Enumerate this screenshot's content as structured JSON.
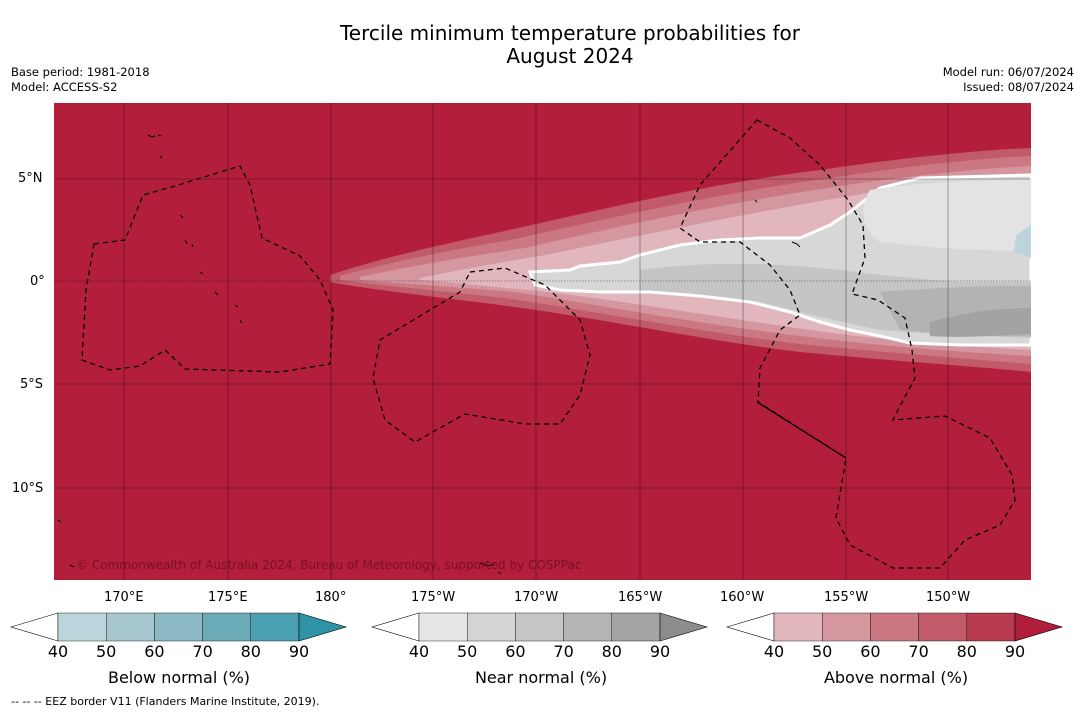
{
  "title": {
    "line1": "Tercile minimum temperature probabilities for",
    "line2": "August 2024"
  },
  "meta": {
    "base_period": "Base period: 1981-2018",
    "model": "Model: ACCESS-S2",
    "model_run": "Model run: 06/07/2024",
    "issued": "Issued: 08/07/2024"
  },
  "map": {
    "lat_labels": [
      "5°N",
      "0°",
      "5°S",
      "10°S"
    ],
    "lon_labels": [
      "170°E",
      "175°E",
      "180°",
      "175°W",
      "170°W",
      "165°W",
      "160°W",
      "155°W",
      "150°W"
    ],
    "copyright": "© Commonwealth of Australia 2024, Bureau of Meteorology, supported by COSPPac",
    "colors": {
      "above_90": "#b31e3a",
      "ocean_border": "#000000",
      "near_50": "#d7d7d7",
      "near_60": "#c5c5c5",
      "near_70": "#b3b3b3",
      "near_80": "#a3a3a3",
      "below_40": "#bcd5dc"
    }
  },
  "colorbars": [
    {
      "label": "Below normal (%)",
      "ticks": [
        "40",
        "50",
        "60",
        "70",
        "80",
        "90"
      ],
      "colors": [
        "#bcd5dc",
        "#a6c7cd",
        "#8bb8c2",
        "#6babb8",
        "#4aa0b0",
        "#2f93a7"
      ]
    },
    {
      "label": "Near normal (%)",
      "ticks": [
        "40",
        "50",
        "60",
        "70",
        "80",
        "90"
      ],
      "colors": [
        "#e6e6e6",
        "#d5d5d5",
        "#c6c6c6",
        "#b5b5b5",
        "#a4a4a4",
        "#8c8c8c"
      ]
    },
    {
      "label": "Above normal (%)",
      "ticks": [
        "40",
        "50",
        "60",
        "70",
        "80",
        "90"
      ],
      "colors": [
        "#e1b7bd",
        "#d5979f",
        "#cc7882",
        "#c15a69",
        "#b83a4f",
        "#b01e3a"
      ]
    }
  ],
  "footer": "--  --  -- EEZ border V11 (Flanders Marine Institute, 2019)."
}
